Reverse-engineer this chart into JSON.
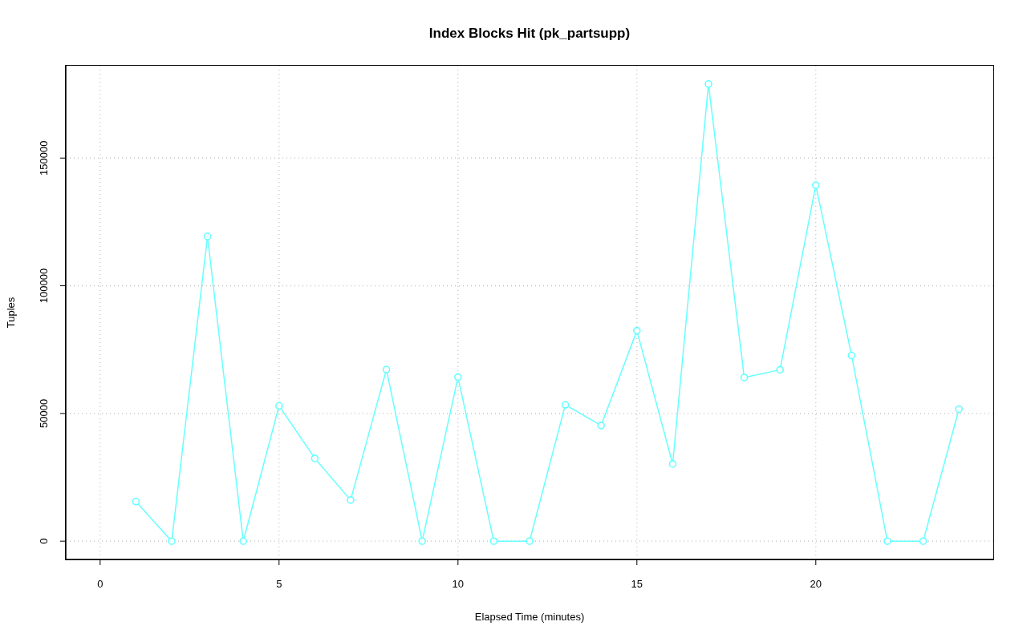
{
  "chart_data": {
    "type": "line",
    "title": "Index Blocks Hit (pk_partsupp)",
    "xlabel": "Elapsed Time (minutes)",
    "ylabel": "Tuples",
    "x": [
      1,
      2,
      3,
      4,
      5,
      6,
      7,
      8,
      9,
      10,
      11,
      12,
      13,
      14,
      15,
      16,
      17,
      18,
      19,
      20,
      21,
      22,
      23,
      24
    ],
    "values": [
      15500,
      0,
      119300,
      0,
      53000,
      32400,
      16100,
      67200,
      0,
      64200,
      0,
      0,
      53400,
      45300,
      82400,
      30200,
      179000,
      64100,
      67100,
      139400,
      72700,
      0,
      0,
      51700
    ],
    "color": "#66ffff",
    "xlim": [
      -0.96,
      24.96
    ],
    "ylim": [
      -7160,
      186160
    ],
    "xticks": [
      0,
      5,
      10,
      15,
      20
    ],
    "yticks": [
      0,
      50000,
      100000,
      150000
    ],
    "grid": true,
    "marker": "circle",
    "line_style": "solid"
  }
}
